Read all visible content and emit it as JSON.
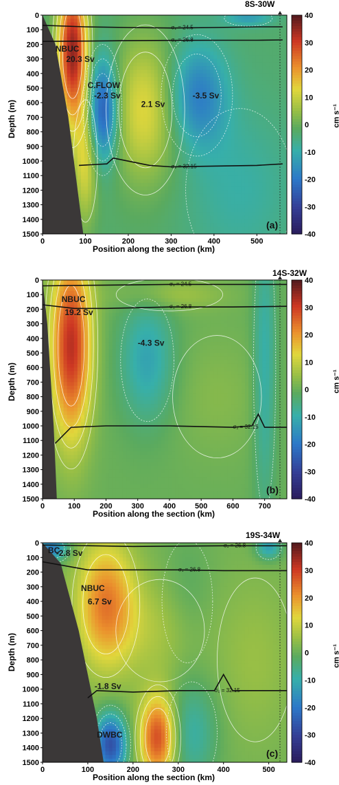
{
  "chart_data": [
    {
      "type": "heatmap",
      "panel_label": "(a)",
      "section": "8S-30W",
      "xlabel": "Position along the section (km)",
      "ylabel": "Depth (m)",
      "xlim": [
        0,
        570
      ],
      "ylim": [
        1500,
        0
      ],
      "xticks": [
        "0",
        "100",
        "200",
        "300",
        "400",
        "500"
      ],
      "xtick_values": [
        0,
        100,
        200,
        300,
        400,
        500
      ],
      "yticks": [
        "0",
        "100",
        "200",
        "300",
        "400",
        "500",
        "600",
        "700",
        "800",
        "900",
        "1000",
        "1100",
        "1200",
        "1300",
        "1400",
        "1500"
      ],
      "ytick_values": [
        0,
        100,
        200,
        300,
        400,
        500,
        600,
        700,
        800,
        900,
        1000,
        1100,
        1200,
        1300,
        1400,
        1500
      ],
      "colorbar": {
        "unit": "cm s⁻¹",
        "range": [
          -40,
          40
        ],
        "ticks": [
          "40",
          "30",
          "20",
          "10",
          "0",
          "-10",
          "-20",
          "-30",
          "-40"
        ],
        "tick_values": [
          40,
          30,
          20,
          10,
          0,
          -10,
          -20,
          -30,
          -40
        ]
      },
      "annotations": [
        {
          "text": "NBUC",
          "x": 30,
          "y": 250
        },
        {
          "text": "20.3 Sv",
          "x": 55,
          "y": 320
        },
        {
          "text": "C.FLOW",
          "x": 105,
          "y": 500
        },
        {
          "text": "-2.3 Sv",
          "x": 120,
          "y": 570
        },
        {
          "text": "2.1 Sv",
          "x": 230,
          "y": 630
        },
        {
          "text": "-3.5 Sv",
          "x": 350,
          "y": 570
        }
      ],
      "isopycnals": [
        {
          "label": "σ₁ = 24.5",
          "x": [
            0,
            100,
            200,
            300,
            400,
            500,
            560
          ],
          "depth": [
            70,
            80,
            85,
            88,
            85,
            80,
            80
          ]
        },
        {
          "label": "σ₁ = 26.8",
          "x": [
            0,
            100,
            200,
            300,
            400,
            500,
            560
          ],
          "depth": [
            180,
            178,
            175,
            173,
            172,
            172,
            170
          ]
        },
        {
          "label": "σ₂ = 32.15",
          "x": [
            85,
            150,
            165,
            250,
            300,
            400,
            500,
            560
          ],
          "depth": [
            1030,
            1020,
            980,
            1030,
            1040,
            1035,
            1030,
            1020
          ]
        }
      ],
      "cores": [
        {
          "x": 70,
          "depth": 250,
          "value": 38,
          "sx": 25,
          "sy": 350
        },
        {
          "x": 140,
          "depth": 650,
          "value": -24,
          "sx": 25,
          "sy": 250
        },
        {
          "x": 240,
          "depth": 650,
          "value": 16,
          "sx": 55,
          "sy": 350
        },
        {
          "x": 360,
          "depth": 550,
          "value": -16,
          "sx": 50,
          "sy": 250
        },
        {
          "x": 100,
          "depth": 1000,
          "value": 15,
          "sx": 20,
          "sy": 300
        },
        {
          "x": 460,
          "depth": 1200,
          "value": -6,
          "sx": 90,
          "sy": 400
        },
        {
          "x": 480,
          "depth": 20,
          "value": -10,
          "sx": 40,
          "sy": 40
        }
      ],
      "background_value": -3,
      "topography": {
        "x": [
          0,
          30,
          60,
          95
        ],
        "depth": [
          0,
          200,
          700,
          1500
        ]
      }
    },
    {
      "type": "heatmap",
      "panel_label": "(b)",
      "section": "14S-32W",
      "xlabel": "Position along the section (km)",
      "ylabel": "Depth (m)",
      "xlim": [
        0,
        770
      ],
      "ylim": [
        1500,
        0
      ],
      "xticks": [
        "0",
        "100",
        "200",
        "300",
        "400",
        "500",
        "600",
        "700"
      ],
      "xtick_values": [
        0,
        100,
        200,
        300,
        400,
        500,
        600,
        700
      ],
      "yticks": [
        "0",
        "100",
        "200",
        "300",
        "400",
        "500",
        "600",
        "700",
        "800",
        "900",
        "1000",
        "1100",
        "1200",
        "1300",
        "1400",
        "1500"
      ],
      "ytick_values": [
        0,
        100,
        200,
        300,
        400,
        500,
        600,
        700,
        800,
        900,
        1000,
        1100,
        1200,
        1300,
        1400,
        1500
      ],
      "colorbar": {
        "unit": "cm s⁻¹",
        "range": [
          -40,
          40
        ],
        "ticks": [
          "40",
          "30",
          "20",
          "10",
          "0",
          "-10",
          "-20",
          "-30",
          "-40"
        ],
        "tick_values": [
          40,
          30,
          20,
          10,
          0,
          -10,
          -20,
          -30,
          -40
        ]
      },
      "annotations": [
        {
          "text": "NBUC",
          "x": 60,
          "y": 150
        },
        {
          "text": "19.2 Sv",
          "x": 70,
          "y": 240
        },
        {
          "text": "-4.3 Sv",
          "x": 300,
          "y": 450
        }
      ],
      "isopycnals": [
        {
          "label": "σ₁ = 24.5",
          "x": [
            0,
            200,
            400,
            600,
            770
          ],
          "depth": [
            40,
            35,
            30,
            30,
            30
          ]
        },
        {
          "label": "σ₁ = 26.8",
          "x": [
            0,
            100,
            200,
            400,
            600,
            770
          ],
          "depth": [
            170,
            195,
            195,
            185,
            185,
            180
          ]
        },
        {
          "label": "σ₂ = 32.15",
          "x": [
            40,
            90,
            200,
            400,
            600,
            660,
            680,
            700,
            770
          ],
          "depth": [
            1120,
            1010,
            1000,
            1000,
            1010,
            1000,
            920,
            1010,
            1010
          ]
        }
      ],
      "cores": [
        {
          "x": 90,
          "depth": 450,
          "value": 32,
          "sx": 45,
          "sy": 450
        },
        {
          "x": 330,
          "depth": 550,
          "value": -12,
          "sx": 60,
          "sy": 300
        },
        {
          "x": 700,
          "depth": 600,
          "value": -10,
          "sx": 25,
          "sy": 700
        },
        {
          "x": 400,
          "depth": 100,
          "value": 6,
          "sx": 120,
          "sy": 80
        },
        {
          "x": 550,
          "depth": 800,
          "value": 3,
          "sx": 100,
          "sy": 300
        }
      ],
      "background_value": 0,
      "topography": {
        "x": [
          0,
          15,
          35,
          45
        ],
        "depth": [
          0,
          300,
          1000,
          1500
        ]
      }
    },
    {
      "type": "heatmap",
      "panel_label": "(c)",
      "section": "19S-34W",
      "xlabel": "Position along the section (km)",
      "ylabel": "Depth (m)",
      "xlim": [
        0,
        540
      ],
      "ylim": [
        1500,
        0
      ],
      "xticks": [
        "0",
        "100",
        "200",
        "300",
        "400",
        "500"
      ],
      "xtick_values": [
        0,
        100,
        200,
        300,
        400,
        500
      ],
      "yticks": [
        "0",
        "100",
        "200",
        "300",
        "400",
        "500",
        "600",
        "700",
        "800",
        "900",
        "1000",
        "1100",
        "1200",
        "1300",
        "1400",
        "1500"
      ],
      "ytick_values": [
        0,
        100,
        200,
        300,
        400,
        500,
        600,
        700,
        800,
        900,
        1000,
        1100,
        1200,
        1300,
        1400,
        1500
      ],
      "colorbar": {
        "unit": "cm s⁻¹",
        "range": [
          -40,
          40
        ],
        "ticks": [
          "40",
          "30",
          "20",
          "10",
          "0",
          "-10",
          "-20",
          "-30",
          "-40"
        ],
        "tick_values": [
          40,
          30,
          20,
          10,
          0,
          -10,
          -20,
          -30,
          -40
        ]
      },
      "annotations": [
        {
          "text": "BC",
          "x": 12,
          "y": 70
        },
        {
          "text": "-2.8 Sv",
          "x": 30,
          "y": 90
        },
        {
          "text": "NBUC",
          "x": 85,
          "y": 330
        },
        {
          "text": "6.7 Sv",
          "x": 100,
          "y": 420
        },
        {
          "text": "-1.8 Sv",
          "x": 115,
          "y": 1000
        },
        {
          "text": "DWBC",
          "x": 120,
          "y": 1330
        }
      ],
      "isopycnals": [
        {
          "label": "σ₁ = 26.8",
          "x": [
            0,
            200,
            400,
            540
          ],
          "depth": [
            15,
            25,
            20,
            20
          ]
        },
        {
          "label": "σ₁ = 26.8",
          "x": [
            0,
            100,
            200,
            300,
            400,
            540
          ],
          "depth": [
            130,
            185,
            185,
            185,
            190,
            190
          ]
        },
        {
          "label": "σ₂ = 32.15",
          "x": [
            100,
            120,
            200,
            300,
            380,
            400,
            420,
            540
          ],
          "depth": [
            1060,
            1010,
            1020,
            1010,
            1010,
            900,
            1010,
            1010
          ]
        }
      ],
      "cores": [
        {
          "x": 140,
          "depth": 420,
          "value": 22,
          "sx": 45,
          "sy": 300
        },
        {
          "x": 150,
          "depth": 1380,
          "value": -28,
          "sx": 25,
          "sy": 150
        },
        {
          "x": 255,
          "depth": 1330,
          "value": 28,
          "sx": 28,
          "sy": 200
        },
        {
          "x": 330,
          "depth": 1300,
          "value": -10,
          "sx": 40,
          "sy": 250
        },
        {
          "x": 20,
          "depth": 40,
          "value": -20,
          "sx": 25,
          "sy": 60
        },
        {
          "x": 260,
          "depth": 600,
          "value": 6,
          "sx": 70,
          "sy": 250
        },
        {
          "x": 320,
          "depth": 400,
          "value": -4,
          "sx": 40,
          "sy": 300
        },
        {
          "x": 500,
          "depth": 30,
          "value": -14,
          "sx": 20,
          "sy": 60
        },
        {
          "x": 470,
          "depth": 800,
          "value": 4,
          "sx": 60,
          "sy": 400
        }
      ],
      "background_value": 1,
      "topography": {
        "x": [
          0,
          40,
          80,
          120,
          135
        ],
        "depth": [
          0,
          140,
          600,
          1200,
          1500
        ]
      }
    }
  ]
}
